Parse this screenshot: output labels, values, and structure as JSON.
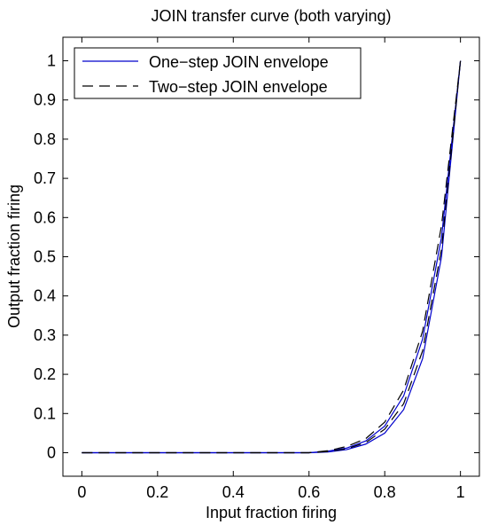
{
  "chart_data": {
    "type": "line",
    "title": "JOIN transfer curve (both varying)",
    "xlabel": "Input fraction firing",
    "ylabel": "Output fraction firing",
    "xlim": [
      -0.05,
      1.05
    ],
    "ylim": [
      -0.06,
      1.06
    ],
    "xticks": [
      0,
      0.2,
      0.4,
      0.6,
      0.8,
      1
    ],
    "xtick_labels": [
      "0",
      "0.2",
      "0.4",
      "0.6",
      "0.8",
      "1"
    ],
    "yticks": [
      0,
      0.1,
      0.2,
      0.3,
      0.4,
      0.5,
      0.6,
      0.7,
      0.8,
      0.9,
      1
    ],
    "ytick_labels": [
      "0",
      "0.1",
      "0.2",
      "0.3",
      "0.4",
      "0.5",
      "0.6",
      "0.7",
      "0.8",
      "0.9",
      "1"
    ],
    "grid": false,
    "legend": {
      "placement": "top-left"
    },
    "series": [
      {
        "name": "One−step JOIN envelope",
        "style": "solid",
        "color": "#0000cc",
        "lines": [
          {
            "x": [
              0,
              0.6,
              0.65,
              0.7,
              0.75,
              0.8,
              0.85,
              0.9,
              0.95,
              1
            ],
            "y": [
              0,
              0,
              0.002,
              0.008,
              0.022,
              0.05,
              0.11,
              0.24,
              0.5,
              1
            ]
          },
          {
            "x": [
              0,
              0.6,
              0.65,
              0.7,
              0.75,
              0.8,
              0.85,
              0.9,
              0.95,
              1
            ],
            "y": [
              0,
              0,
              0.004,
              0.012,
              0.03,
              0.068,
              0.145,
              0.29,
              0.55,
              1
            ]
          }
        ]
      },
      {
        "name": "Two−step JOIN envelope",
        "style": "dashed",
        "color": "#000000",
        "lines": [
          {
            "x": [
              0,
              0.6,
              0.65,
              0.7,
              0.75,
              0.8,
              0.85,
              0.9,
              0.95,
              1
            ],
            "y": [
              0,
              0,
              0.003,
              0.01,
              0.026,
              0.06,
              0.125,
              0.26,
              0.52,
              1
            ]
          },
          {
            "x": [
              0,
              0.6,
              0.65,
              0.7,
              0.75,
              0.8,
              0.85,
              0.9,
              0.95,
              1
            ],
            "y": [
              0,
              0,
              0.005,
              0.016,
              0.036,
              0.078,
              0.16,
              0.31,
              0.58,
              1
            ]
          }
        ]
      }
    ]
  }
}
